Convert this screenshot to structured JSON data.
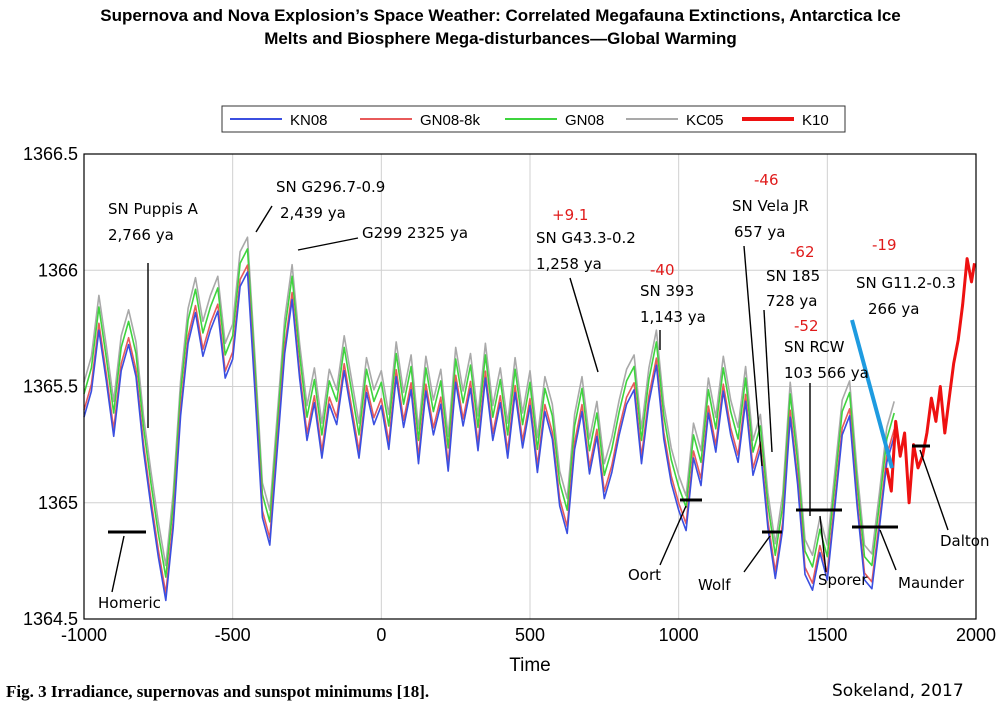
{
  "title_lines": [
    "Supernova and Nova Explosion’s Space Weather: Correlated Megafauna Extinctions, Antarctica Ice",
    "Melts and Biosphere Mega-disturbances—Global Warming"
  ],
  "caption": "Fig. 3    Irradiance, supernovas and sunspot minimums [18].",
  "credit": "Sokeland, 2017",
  "chart_data": {
    "type": "line",
    "xlabel": "Time",
    "ylabel": "",
    "xlim": [
      -1000,
      2000
    ],
    "ylim": [
      1364.5,
      1366.5
    ],
    "x_ticks": [
      "-1000",
      "-500",
      "0",
      "500",
      "1000",
      "1500",
      "2000"
    ],
    "y_ticks": [
      "1364.5",
      "1365",
      "1365.5",
      "1366",
      "1366.5"
    ],
    "grid": true,
    "legend": "top-center",
    "legend_items": [
      "KN08",
      "GN08-8k",
      "GN08",
      "KC05",
      "K10"
    ],
    "colors": {
      "KN08": "#3b4fe0",
      "GN08-8k": "#e85a5a",
      "GN08": "#3ed43e",
      "KC05": "#a9a9a9",
      "K10": "#ee1111",
      "SN G11.2-0.3": "#1e9be0"
    },
    "base_series": {
      "x": [
        -1000,
        -975,
        -950,
        -925,
        -900,
        -875,
        -850,
        -825,
        -800,
        -775,
        -750,
        -725,
        -700,
        -675,
        -650,
        -625,
        -600,
        -575,
        -550,
        -525,
        -500,
        -475,
        -450,
        -425,
        -400,
        -375,
        -350,
        -325,
        -300,
        -275,
        -250,
        -225,
        -200,
        -175,
        -150,
        -125,
        -100,
        -75,
        -50,
        -25,
        0,
        25,
        50,
        75,
        100,
        125,
        150,
        175,
        200,
        225,
        250,
        275,
        300,
        325,
        350,
        375,
        400,
        425,
        450,
        475,
        500,
        525,
        550,
        575,
        600,
        625,
        650,
        675,
        700,
        725,
        750,
        775,
        800,
        825,
        850,
        875,
        900,
        925,
        950,
        975,
        1000,
        1025,
        1050,
        1075,
        1100,
        1125,
        1150,
        1175,
        1200,
        1225,
        1250,
        1275,
        1300,
        1325,
        1350,
        1375,
        1400,
        1425,
        1450,
        1475,
        1500,
        1525,
        1550,
        1575,
        1600,
        1625,
        1650,
        1675,
        1700,
        1725
      ],
      "values": [
        1365.45,
        1365.55,
        1365.8,
        1365.6,
        1365.35,
        1365.65,
        1365.75,
        1365.6,
        1365.3,
        1365.05,
        1364.85,
        1364.65,
        1364.95,
        1365.45,
        1365.75,
        1365.9,
        1365.7,
        1365.8,
        1365.9,
        1365.6,
        1365.7,
        1366.0,
        1366.05,
        1365.55,
        1365.0,
        1364.9,
        1365.3,
        1365.7,
        1365.95,
        1365.6,
        1365.35,
        1365.5,
        1365.25,
        1365.5,
        1365.4,
        1365.65,
        1365.45,
        1365.25,
        1365.55,
        1365.4,
        1365.5,
        1365.3,
        1365.6,
        1365.4,
        1365.55,
        1365.25,
        1365.55,
        1365.35,
        1365.5,
        1365.2,
        1365.6,
        1365.4,
        1365.55,
        1365.3,
        1365.6,
        1365.35,
        1365.5,
        1365.25,
        1365.55,
        1365.3,
        1365.5,
        1365.2,
        1365.45,
        1365.35,
        1365.05,
        1364.95,
        1365.3,
        1365.45,
        1365.2,
        1365.35,
        1365.1,
        1365.2,
        1365.35,
        1365.5,
        1365.55,
        1365.25,
        1365.5,
        1365.65,
        1365.35,
        1365.15,
        1365.05,
        1364.95,
        1365.25,
        1365.15,
        1365.45,
        1365.3,
        1365.55,
        1365.35,
        1365.25,
        1365.5,
        1365.2,
        1365.3,
        1364.95,
        1364.75,
        1364.95,
        1365.45,
        1365.15,
        1364.75,
        1364.7,
        1364.85,
        1364.75,
        1365.05,
        1365.35,
        1365.45,
        1365.05,
        1364.75,
        1364.7,
        1364.95,
        1365.25,
        1365.35
      ]
    },
    "series": [
      {
        "name": "KN08",
        "offset": -0.07
      },
      {
        "name": "GN08-8k",
        "offset": -0.04
      },
      {
        "name": "GN08",
        "offset": 0.03
      },
      {
        "name": "KC05",
        "offset": 0.08
      }
    ],
    "k10_series": {
      "name": "K10",
      "x": [
        1700,
        1715,
        1730,
        1745,
        1760,
        1775,
        1790,
        1805,
        1820,
        1835,
        1850,
        1865,
        1880,
        1895,
        1910,
        1925,
        1940,
        1955,
        1970,
        1985,
        1995
      ],
      "values": [
        1365.15,
        1365.05,
        1365.35,
        1365.2,
        1365.3,
        1365.0,
        1365.25,
        1365.15,
        1365.2,
        1365.3,
        1365.45,
        1365.35,
        1365.5,
        1365.3,
        1365.45,
        1365.6,
        1365.7,
        1365.85,
        1366.05,
        1365.95,
        1366.03
      ]
    },
    "supernova_labels": [
      {
        "name": "SN Puppis A",
        "age": "2,766 ya"
      },
      {
        "name": "SN G296.7-0.9",
        "age": "2,439 ya"
      },
      {
        "name": "G299  2325 ya",
        "age": ""
      },
      {
        "name": "SN G43.3-0.2",
        "age": "1,258 ya",
        "red": "+9.1"
      },
      {
        "name": "SN 393",
        "age": "1,143 ya",
        "red": "-40"
      },
      {
        "name": "SN Vela JR",
        "age": "657 ya",
        "red": "-46"
      },
      {
        "name": "SN 185",
        "age": "728 ya",
        "red": "-62"
      },
      {
        "name": "SN RCW",
        "age": "103 566 ya",
        "red": "-52"
      },
      {
        "name": "SN G11.2-0.3",
        "age": "266 ya",
        "red": "-19"
      }
    ],
    "minima": [
      "Homeric",
      "Oort",
      "Wolf",
      "Sporer",
      "Maunder",
      "Dalton"
    ]
  }
}
